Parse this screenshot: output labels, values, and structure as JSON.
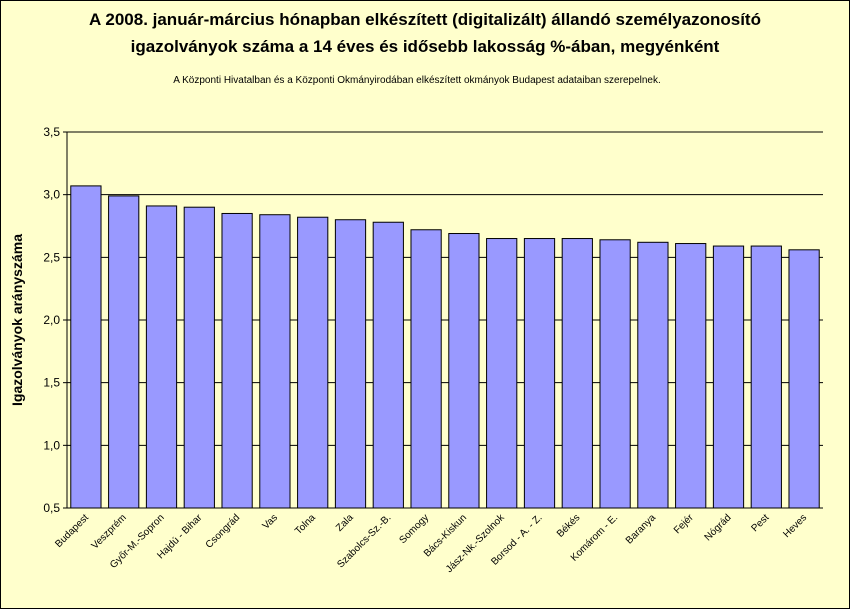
{
  "chart_data": {
    "type": "bar",
    "title_line1": "A 2008. január-március hónapban elkészített (digitalizált) állandó személyazonosító",
    "title_line2": "igazolványok száma a 14 éves és idősebb lakosság %-ában, megyénként",
    "subtitle": "A  Központi Hivatalban és a Központi Okmányirodában elkészített  okmányok Budapest adataiban szerepelnek.",
    "ylabel": "Igazolványok arányszáma",
    "xlabel": "",
    "ylim": [
      0.5,
      3.5
    ],
    "yticks": [
      "0,5",
      "1,0",
      "1,5",
      "2,0",
      "2,5",
      "3,0",
      "3,5"
    ],
    "grid": true,
    "bar_color": "#9999ff",
    "background_color": "#ffffcc",
    "categories": [
      "Budapest",
      "Veszprém",
      "Győr-M.-Sopron",
      "Hajdú - Bihar",
      "Csongrád",
      "Vas",
      "Tolna",
      "Zala",
      "Szabolcs-Sz.-B.",
      "Somogy",
      "Bács-Kiskun",
      "Jász-Nk.-Szolnok",
      "Borsod - A. - Z.",
      "Békés",
      "Komárom - E.",
      "Baranya",
      "Fejér",
      "Nógrád",
      "Pest",
      "Heves"
    ],
    "values": [
      3.07,
      2.99,
      2.91,
      2.9,
      2.85,
      2.84,
      2.82,
      2.8,
      2.78,
      2.72,
      2.69,
      2.65,
      2.65,
      2.65,
      2.64,
      2.62,
      2.61,
      2.59,
      2.59,
      2.56
    ]
  }
}
